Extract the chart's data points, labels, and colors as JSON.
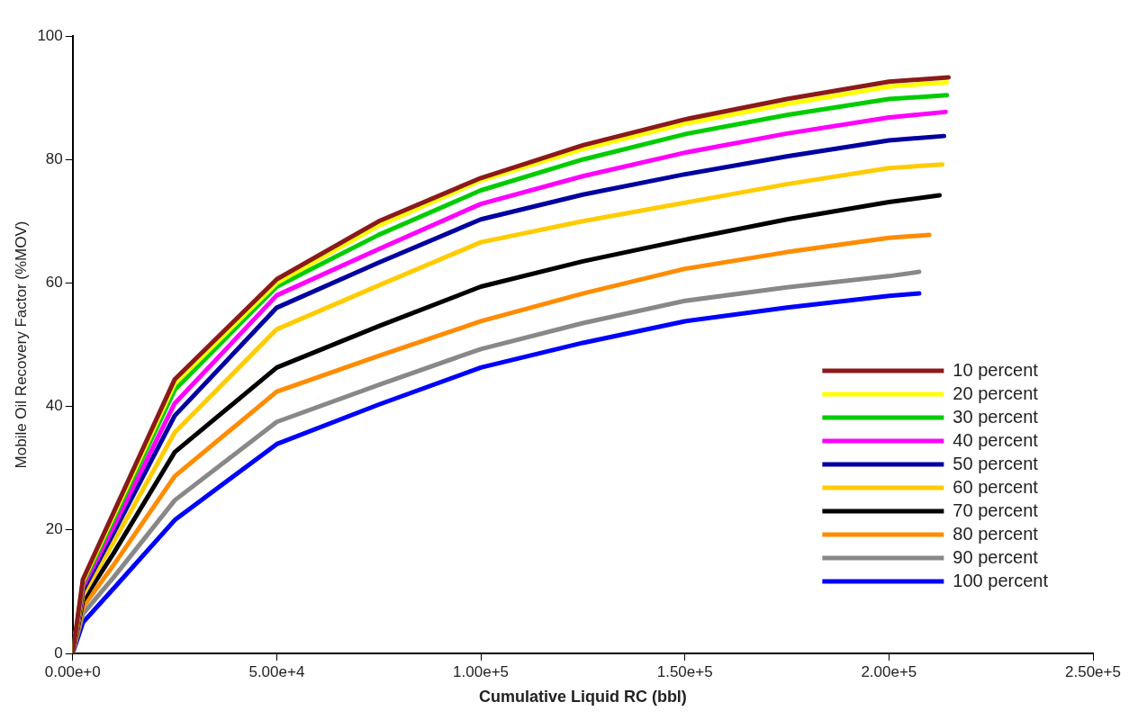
{
  "chart_data": {
    "type": "line",
    "xlabel": "Cumulative Liquid RC (bbl)",
    "ylabel": "Mobile Oil Recovery Factor (%MOV)",
    "xlim": [
      0,
      250000
    ],
    "ylim": [
      0,
      100
    ],
    "xticks": [
      {
        "value": 0,
        "label": "0.00e+0"
      },
      {
        "value": 50000,
        "label": "5.00e+4"
      },
      {
        "value": 100000,
        "label": "1.00e+5"
      },
      {
        "value": 150000,
        "label": "1.50e+5"
      },
      {
        "value": 200000,
        "label": "2.00e+5"
      },
      {
        "value": 250000,
        "label": "2.50e+5"
      }
    ],
    "yticks": [
      0,
      20,
      40,
      60,
      80,
      100
    ],
    "grid": false,
    "legend": "bottom right",
    "marker": "none",
    "line_style": "solid",
    "series": [
      {
        "name": "10 percent",
        "color": "#8b1a1a",
        "x": [
          0,
          2500,
          10000,
          25000,
          50000,
          75000,
          100000,
          125000,
          150000,
          175000,
          200000,
          214600
        ],
        "values": [
          0,
          12,
          22.8,
          44.4,
          60.6,
          70,
          77,
          82.3,
          86.5,
          89.8,
          92.6,
          93.3
        ]
      },
      {
        "name": "20 percent",
        "color": "#ffff00",
        "x": [
          0,
          2500,
          10000,
          25000,
          50000,
          75000,
          100000,
          125000,
          150000,
          175000,
          200000,
          214200
        ],
        "values": [
          0,
          11.7,
          22.3,
          43.7,
          60,
          69.3,
          76.6,
          81.7,
          85.8,
          89,
          91.8,
          92.5
        ]
      },
      {
        "name": "30 percent",
        "color": "#00cc00",
        "x": [
          0,
          2500,
          10000,
          25000,
          50000,
          75000,
          100000,
          125000,
          150000,
          175000,
          200000,
          214200
        ],
        "values": [
          0,
          11.4,
          21.7,
          42.7,
          59.4,
          67.8,
          75,
          80,
          84.1,
          87.2,
          89.8,
          90.4
        ]
      },
      {
        "name": "40 percent",
        "color": "#ff00ff",
        "x": [
          0,
          2500,
          10000,
          25000,
          50000,
          75000,
          100000,
          125000,
          150000,
          175000,
          200000,
          213900
        ],
        "values": [
          0,
          10.8,
          20.5,
          40.5,
          58,
          65.5,
          72.8,
          77.3,
          81.1,
          84.2,
          86.8,
          87.7
        ]
      },
      {
        "name": "50 percent",
        "color": "#0000a0",
        "x": [
          0,
          2500,
          10000,
          25000,
          50000,
          75000,
          100000,
          125000,
          150000,
          175000,
          200000,
          213500
        ],
        "values": [
          0,
          10.2,
          19.5,
          38.5,
          56,
          63.3,
          70.3,
          74.3,
          77.6,
          80.5,
          83.1,
          83.8
        ]
      },
      {
        "name": "60 percent",
        "color": "#ffcc00",
        "x": [
          0,
          2500,
          10000,
          25000,
          50000,
          75000,
          100000,
          125000,
          150000,
          175000,
          200000,
          213100
        ],
        "values": [
          0,
          9.4,
          18,
          35.8,
          52.5,
          59.6,
          66.6,
          70,
          73,
          76,
          78.6,
          79.2
        ]
      },
      {
        "name": "70 percent",
        "color": "#000000",
        "x": [
          0,
          2500,
          10000,
          25000,
          50000,
          75000,
          100000,
          125000,
          150000,
          175000,
          200000,
          212400
        ],
        "values": [
          0,
          8.5,
          16.2,
          32.6,
          46.3,
          53,
          59.4,
          63.5,
          67,
          70.3,
          73.1,
          74.2
        ]
      },
      {
        "name": "80 percent",
        "color": "#ff8c00",
        "x": [
          0,
          2500,
          10000,
          25000,
          50000,
          75000,
          100000,
          125000,
          150000,
          175000,
          200000,
          209900
        ],
        "values": [
          0,
          7.5,
          14.3,
          28.7,
          42.4,
          48.2,
          53.8,
          58.3,
          62.3,
          65,
          67.3,
          67.8
        ]
      },
      {
        "name": "90 percent",
        "color": "#888888",
        "x": [
          0,
          2500,
          10000,
          25000,
          50000,
          75000,
          100000,
          125000,
          150000,
          175000,
          200000,
          207400
        ],
        "values": [
          0,
          6.4,
          12.3,
          24.8,
          37.5,
          43.5,
          49.3,
          53.5,
          57.1,
          59.3,
          61.1,
          61.8
        ]
      },
      {
        "name": "100 percent",
        "color": "#0000ff",
        "x": [
          0,
          2500,
          10000,
          25000,
          50000,
          75000,
          100000,
          125000,
          150000,
          175000,
          200000,
          207400
        ],
        "values": [
          0,
          5,
          10.5,
          21.6,
          33.9,
          40.3,
          46.3,
          50.3,
          53.8,
          56,
          57.9,
          58.3
        ]
      }
    ]
  }
}
